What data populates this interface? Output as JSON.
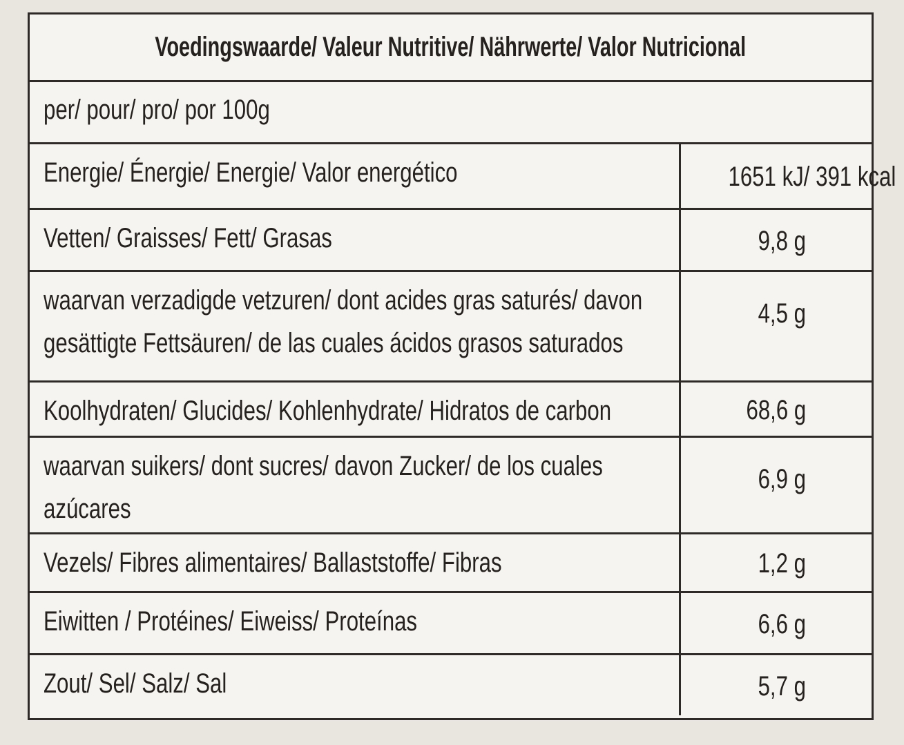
{
  "header": {
    "title": "Voedingswaarde/ Valeur Nutritive/ Nährwerte/ Valor Nutricional"
  },
  "subheader": "per/ pour/ pro/ por 100g",
  "table": {
    "rows": [
      [
        "Energie/ Énergie/ Energie/ Valor energético",
        "1651 kJ/ 391 kcal"
      ],
      [
        "Vetten/ Graisses/ Fett/ Grasas",
        "9,8 g"
      ],
      [
        "waarvan verzadigde vetzuren/ dont acides gras saturés/ davon gesättigte Fettsäuren/ de las cuales ácidos grasos saturados",
        "4,5 g"
      ],
      [
        "Koolhydraten/ Glucides/ Kohlenhydrate/ Hidratos de carbon",
        "68,6 g"
      ],
      [
        "waarvan suikers/ dont sucres/ davon Zucker/ de los cuales azúcares",
        "6,9 g"
      ],
      [
        "Vezels/ Fibres alimentaires/ Ballaststoffe/ Fibras",
        "1,2 g"
      ],
      [
        "Eiwitten / Protéines/ Eiweiss/ Proteínas",
        "6,6 g"
      ],
      [
        "Zout/ Sel/ Salz/ Sal",
        "5,7 g"
      ]
    ]
  }
}
